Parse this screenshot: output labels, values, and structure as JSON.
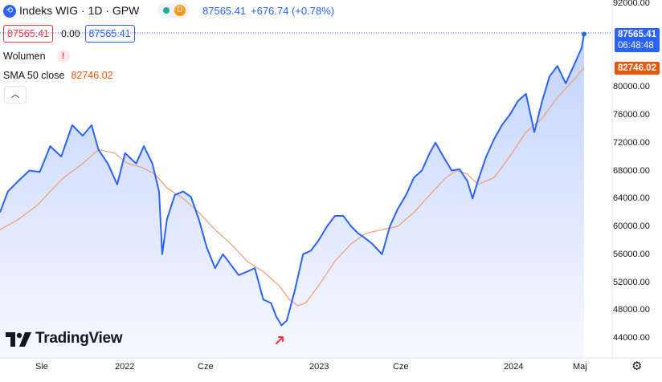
{
  "header": {
    "title": "Indeks WIG · 1D · GPW",
    "market_badge": "D",
    "price": "87565.41",
    "change": "+676.74 (+0.78%)"
  },
  "quote_row": {
    "sell": "87565.41",
    "spread": "0.00",
    "buy": "87565.41"
  },
  "volume_label": "Wolumen",
  "volume_warning": "!",
  "sma": {
    "label": "SMA 50 close",
    "value": "82746.02"
  },
  "price_tag": {
    "value": "87565.41",
    "countdown": "06:48:48"
  },
  "sma_tag": "82746.02",
  "branding": "TradingView",
  "colors": {
    "price_line": "#2962ff",
    "sma_line": "#f0a07e",
    "sma_tag": "#e8560a",
    "red_text": "#f23645"
  },
  "chart_data": {
    "type": "line",
    "title": "Indeks WIG · 1D · GPW",
    "xlabel": "",
    "ylabel": "",
    "ylim": [
      42000,
      93500
    ],
    "grid": false,
    "x_tick_labels": [
      "Sie",
      "2022",
      "Cze",
      "2023",
      "Cze",
      "2024",
      "Maj"
    ],
    "y_ticks": [
      44000,
      48000,
      52000,
      56000,
      60000,
      64000,
      68000,
      72000,
      76000,
      80000,
      84000,
      88000,
      92000
    ],
    "y_tick_labels": [
      "44000.00",
      "48000.00",
      "52000.00",
      "56000.00",
      "60000.00",
      "64000.00",
      "68000.00",
      "72000.00",
      "76000.00",
      "80000.00",
      "84000.00",
      "88000.00",
      "92000.00"
    ],
    "series": [
      {
        "name": "Indeks WIG",
        "x": [
          "2021-04-20",
          "2021-05-05",
          "2021-05-25",
          "2021-06-15",
          "2021-07-05",
          "2021-07-25",
          "2021-08-15",
          "2021-09-05",
          "2021-09-25",
          "2021-10-12",
          "2021-10-25",
          "2021-11-12",
          "2021-11-30",
          "2021-12-15",
          "2022-01-05",
          "2022-01-20",
          "2022-02-05",
          "2022-02-18",
          "2022-02-24",
          "2022-03-05",
          "2022-03-20",
          "2022-04-05",
          "2022-04-20",
          "2022-05-05",
          "2022-05-20",
          "2022-06-05",
          "2022-06-20",
          "2022-07-05",
          "2022-07-20",
          "2022-08-05",
          "2022-08-20",
          "2022-09-05",
          "2022-09-20",
          "2022-09-30",
          "2022-10-10",
          "2022-10-20",
          "2022-11-05",
          "2022-11-20",
          "2022-12-05",
          "2022-12-20",
          "2023-01-05",
          "2023-01-20",
          "2023-02-05",
          "2023-02-20",
          "2023-03-05",
          "2023-03-15",
          "2023-04-01",
          "2023-04-20",
          "2023-05-05",
          "2023-05-20",
          "2023-06-05",
          "2023-06-20",
          "2023-07-05",
          "2023-07-20",
          "2023-07-31",
          "2023-08-15",
          "2023-08-31",
          "2023-09-15",
          "2023-09-30",
          "2023-10-10",
          "2023-10-20",
          "2023-11-05",
          "2023-11-20",
          "2023-12-05",
          "2023-12-20",
          "2024-01-05",
          "2024-01-20",
          "2024-02-05",
          "2024-02-20",
          "2024-03-05",
          "2024-03-20",
          "2024-04-05",
          "2024-04-20",
          "2024-05-05",
          "2024-05-10"
        ],
        "values": [
          62000,
          65000,
          66500,
          68000,
          67800,
          71500,
          70000,
          74500,
          73000,
          74500,
          71000,
          69000,
          66000,
          70500,
          69000,
          71500,
          69000,
          65000,
          56000,
          61000,
          64500,
          65000,
          64200,
          61000,
          57000,
          54000,
          56000,
          54500,
          53000,
          53500,
          54000,
          49500,
          49000,
          47000,
          45800,
          46500,
          51000,
          56000,
          56500,
          58000,
          60000,
          61500,
          61500,
          60000,
          59000,
          58500,
          57500,
          56000,
          60000,
          62500,
          64500,
          67000,
          68000,
          70500,
          72000,
          70000,
          68000,
          68200,
          66500,
          64000,
          66500,
          70000,
          72500,
          74500,
          76000,
          78000,
          79000,
          73500,
          78000,
          81500,
          83000,
          80500,
          83000,
          85500,
          87565.41
        ],
        "color": "#2962ff"
      },
      {
        "name": "SMA 50 close",
        "x": [
          "2021-04-20",
          "2021-05-25",
          "2021-06-30",
          "2021-07-25",
          "2021-08-20",
          "2021-09-25",
          "2021-10-25",
          "2021-11-25",
          "2021-12-20",
          "2022-01-15",
          "2022-02-10",
          "2022-03-05",
          "2022-04-05",
          "2022-05-05",
          "2022-06-05",
          "2022-07-05",
          "2022-08-05",
          "2022-09-05",
          "2022-10-05",
          "2022-10-25",
          "2022-11-10",
          "2022-11-25",
          "2022-12-20",
          "2023-01-20",
          "2023-02-20",
          "2023-03-20",
          "2023-04-20",
          "2023-05-20",
          "2023-06-20",
          "2023-07-20",
          "2023-08-20",
          "2023-09-10",
          "2023-09-30",
          "2023-10-20",
          "2023-11-20",
          "2023-12-20",
          "2024-01-20",
          "2024-02-20",
          "2024-03-20",
          "2024-04-20",
          "2024-05-10"
        ],
        "values": [
          59500,
          61000,
          63000,
          65000,
          67000,
          69000,
          71000,
          70500,
          69000,
          68500,
          67500,
          65500,
          64000,
          62000,
          59500,
          57500,
          55000,
          53500,
          51500,
          49500,
          48600,
          49000,
          51500,
          55000,
          57500,
          59000,
          59500,
          60000,
          62000,
          64500,
          67000,
          68000,
          67500,
          66000,
          67000,
          70000,
          73500,
          75500,
          78500,
          81000,
          82746.02
        ],
        "color": "#f0a07e"
      }
    ]
  }
}
